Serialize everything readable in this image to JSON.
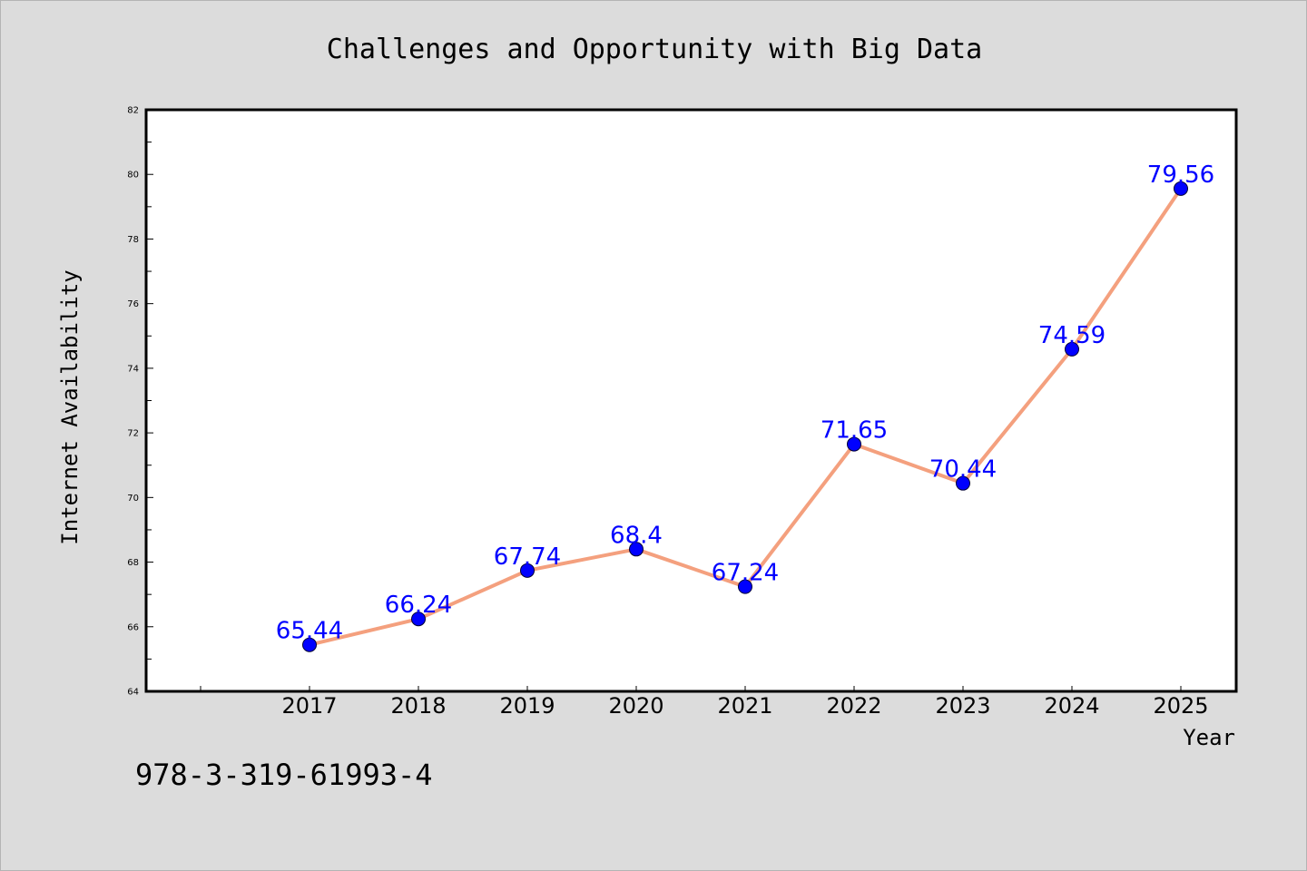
{
  "chart_data": {
    "type": "line",
    "title": "Challenges and Opportunity with Big Data",
    "xlabel": "Year",
    "ylabel": "Internet Availability",
    "categories": [
      "2017",
      "2018",
      "2019",
      "2020",
      "2021",
      "2022",
      "2023",
      "2024",
      "2025"
    ],
    "series": [
      {
        "values": [
          65.44,
          66.24,
          67.74,
          68.4,
          67.24,
          71.65,
          70.44,
          74.59,
          79.56
        ],
        "labels": [
          "65.44",
          "66.24",
          "67.74",
          "68.4",
          "67.24",
          "71.65",
          "70.44",
          "74.59",
          "79.56"
        ],
        "line_color": "#f4a07e",
        "marker_color": "#0000ff"
      }
    ],
    "ylim": [
      64,
      82
    ],
    "yticks": [
      "64",
      "66",
      "68",
      "70",
      "72",
      "74",
      "76",
      "78",
      "80",
      "82"
    ],
    "grid": false,
    "legend": "none"
  },
  "footer": {
    "isbn": "978-3-319-61993-4"
  },
  "colors": {
    "background": "#dcdcdc",
    "plot_background": "#ffffff",
    "line": "#f4a07e",
    "marker": "#0000ff",
    "data_label": "#0000ff"
  }
}
